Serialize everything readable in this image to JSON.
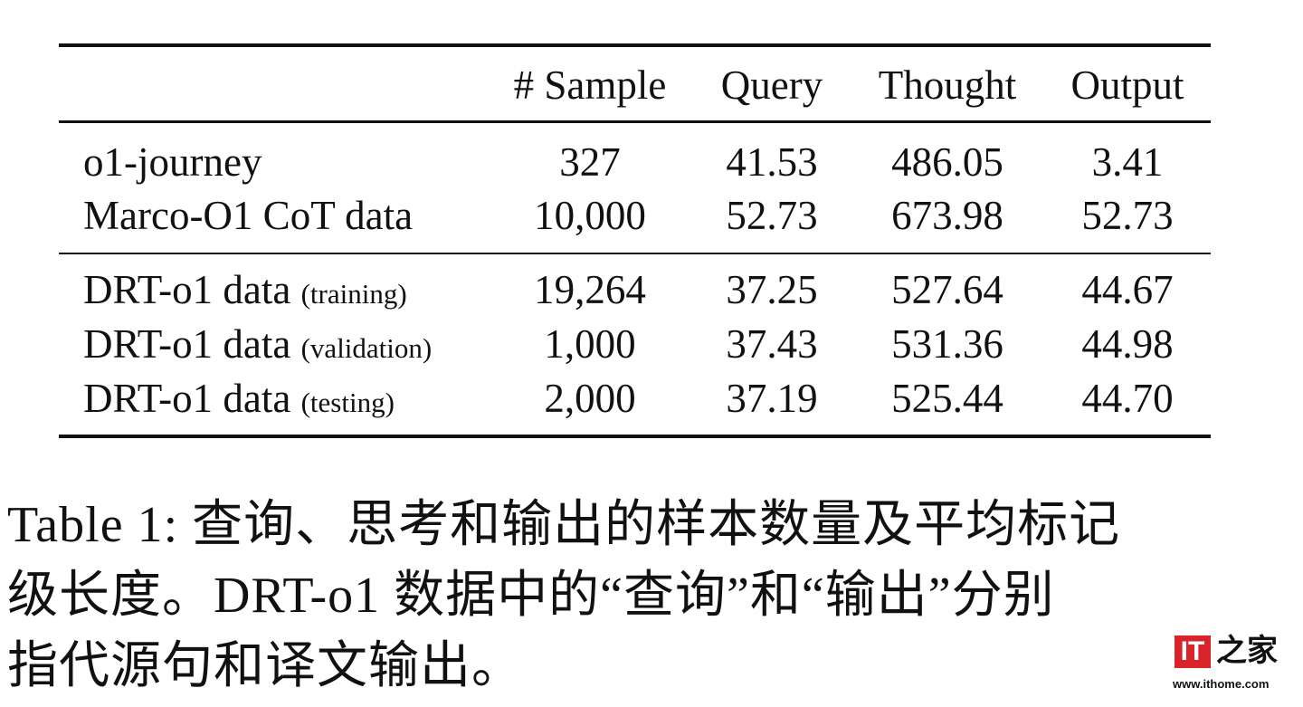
{
  "table": {
    "header": [
      "# Sample",
      "Query",
      "Thought",
      "Output"
    ],
    "rows": [
      {
        "name": "o1-journey",
        "cells": [
          "327",
          "41.53",
          "486.05",
          "3.41"
        ]
      },
      {
        "name": "Marco-O1 CoT data",
        "cells": [
          "10,000",
          "52.73",
          "673.98",
          "52.73"
        ]
      },
      {
        "name": "DRT-o1 data",
        "note": "(training)",
        "cells": [
          "19,264",
          "37.25",
          "527.64",
          "44.67"
        ]
      },
      {
        "name": "DRT-o1 data",
        "note": "(validation)",
        "cells": [
          "1,000",
          "37.43",
          "531.36",
          "44.98"
        ]
      },
      {
        "name": "DRT-o1 data",
        "note": "(testing)",
        "cells": [
          "2,000",
          "37.19",
          "525.44",
          "44.70"
        ]
      }
    ]
  },
  "caption": {
    "lines": [
      "Table 1: 查询、思考和输出的样本数量及平均标记",
      "级长度。DRT-o1 数据中的“查询”和“输出”分别",
      "指代源句和译文输出。"
    ]
  },
  "watermark": {
    "logo": "IT",
    "brand": "之家",
    "url": "www.ithome.com"
  }
}
